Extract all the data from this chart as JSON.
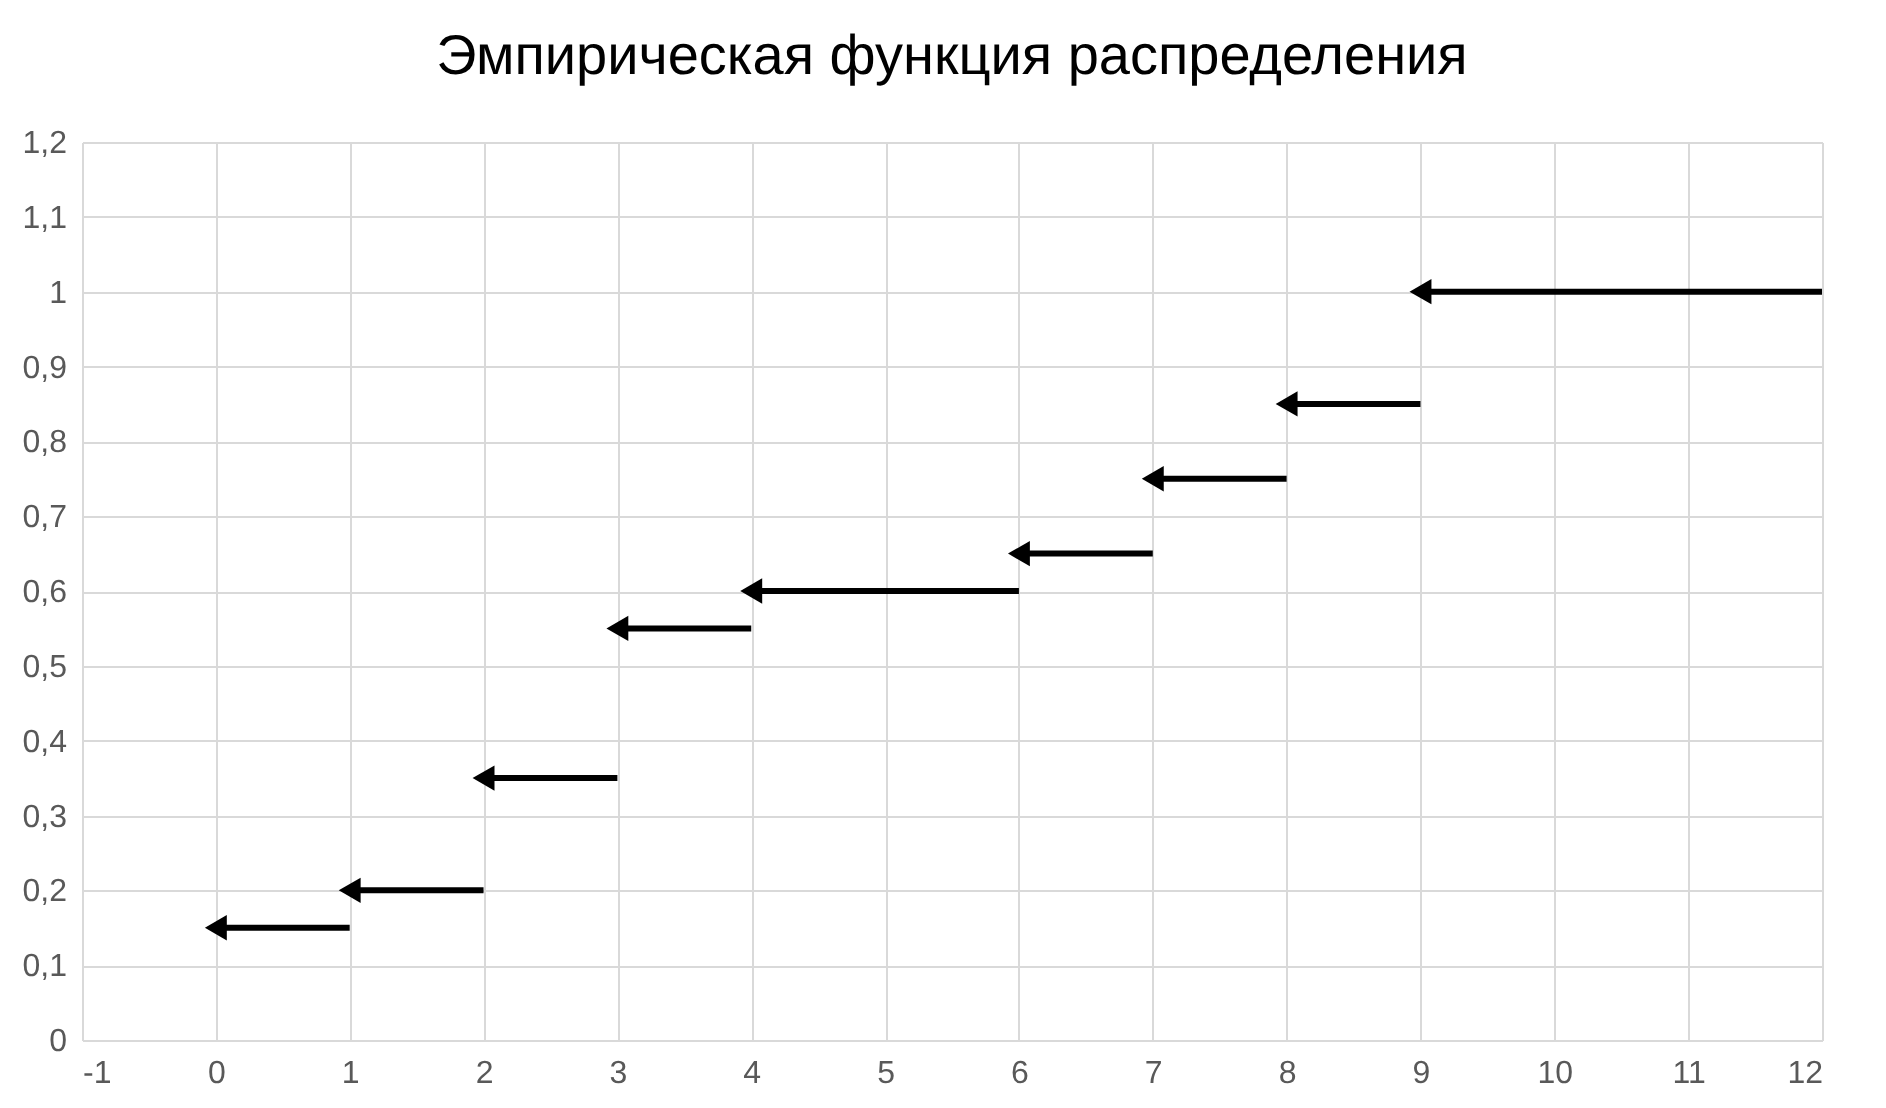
{
  "chart_data": {
    "type": "line",
    "title": "Эмпирическая функция распределения",
    "marker": "triangle",
    "grid": true,
    "legend": false,
    "xlim": [
      -1,
      12
    ],
    "xticks": [
      -1,
      0,
      1,
      2,
      3,
      4,
      5,
      6,
      7,
      8,
      9,
      10,
      11,
      12
    ],
    "ylim": [
      0,
      1.2
    ],
    "yticks": [
      0,
      {
        "value": 0.1,
        "label": "0,1"
      },
      {
        "value": 0.2,
        "label": "0,2"
      },
      {
        "value": 0.3,
        "label": "0,3"
      },
      {
        "value": 0.4,
        "label": "0,4"
      },
      {
        "value": 0.5,
        "label": "0,5"
      },
      {
        "value": 0.6,
        "label": "0,6"
      },
      {
        "value": 0.7,
        "label": "0,7"
      },
      {
        "value": 0.8,
        "label": "0,8"
      },
      {
        "value": 0.9,
        "label": "0,9"
      },
      1,
      {
        "value": 1.1,
        "label": "1,1"
      },
      {
        "value": 1.2,
        "label": "1,2"
      }
    ],
    "series": [
      {
        "color": "#000000",
        "x": [
          0,
          1
        ],
        "values": [
          0.15,
          0.15
        ]
      },
      {
        "color": "#000000",
        "x": [
          1,
          2
        ],
        "values": [
          0.2,
          0.2
        ]
      },
      {
        "color": "#000000",
        "x": [
          2,
          3
        ],
        "values": [
          0.35,
          0.35
        ]
      },
      {
        "color": "#000000",
        "x": [
          3,
          4
        ],
        "values": [
          0.55,
          0.55
        ]
      },
      {
        "color": "#000000",
        "x": [
          4,
          6
        ],
        "values": [
          0.6,
          0.6
        ]
      },
      {
        "color": "#000000",
        "x": [
          6,
          7
        ],
        "values": [
          0.65,
          0.65
        ]
      },
      {
        "color": "#000000",
        "x": [
          7,
          8
        ],
        "values": [
          0.75,
          0.75
        ]
      },
      {
        "color": "#000000",
        "x": [
          8,
          9
        ],
        "values": [
          0.85,
          0.85
        ]
      },
      {
        "color": "#000000",
        "x": [
          9,
          12
        ],
        "values": [
          1.0,
          1.0
        ]
      }
    ]
  }
}
